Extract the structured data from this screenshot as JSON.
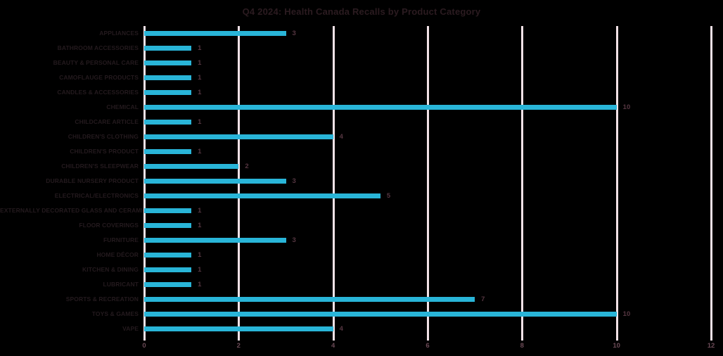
{
  "title": "Q4 2024: Health Canada Recalls by Product Category",
  "colors": {
    "background": "#000000",
    "bar": "#29b5d8",
    "gridline": "#f2e2e7",
    "title_text": "#2b1b20",
    "category_text": "#241a1e",
    "value_text": "#553641",
    "tick_text": "#6b4a56"
  },
  "chart_data": {
    "type": "bar",
    "orientation": "horizontal",
    "title": "Q4 2024: Health Canada Recalls by Product Category",
    "categories": [
      "APPLIANCES",
      "BATHROOM ACCESSORIES",
      "BEAUTY & PERSONAL CARE",
      "CAMOFLAUGE PRODUCTS",
      "CANDLES & ACCESSORIES",
      "CHEMICAL",
      "CHILDCARE ARTICLE",
      "CHILDREN'S CLOTHING",
      "CHILDREN'S PRODUCT",
      "CHILDREN'S SLEEPWEAR",
      "DURABLE NURSERY PRODUCT",
      "ELECTRICAL/ELECTRONICS",
      "EXTERNALLY DECORATED GLASS AND CERAMICS",
      "FLOOR COVERINGS",
      "FURNITURE",
      "HOME DÉCOR",
      "KITCHEN & DINING",
      "LUBRICANT",
      "SPORTS & RECREATION",
      "TOYS & GAMES",
      "VAPE"
    ],
    "values": [
      3,
      1,
      1,
      1,
      1,
      10,
      1,
      4,
      1,
      2,
      3,
      5,
      1,
      1,
      3,
      1,
      1,
      1,
      7,
      10,
      4
    ],
    "xlabel": "",
    "ylabel": "",
    "xlim": [
      0,
      12
    ],
    "x_ticks": [
      0,
      2,
      4,
      6,
      8,
      10,
      12
    ],
    "grid": true,
    "data_labels": true,
    "legend": "none"
  }
}
